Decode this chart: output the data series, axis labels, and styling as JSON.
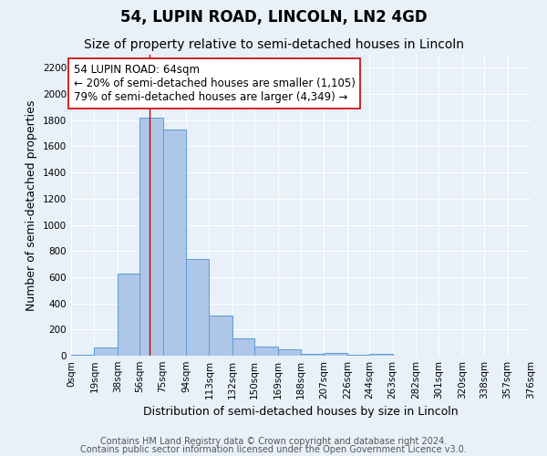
{
  "title": "54, LUPIN ROAD, LINCOLN, LN2 4GD",
  "subtitle": "Size of property relative to semi-detached houses in Lincoln",
  "xlabel": "Distribution of semi-detached houses by size in Lincoln",
  "ylabel": "Number of semi-detached properties",
  "bin_labels": [
    "0sqm",
    "19sqm",
    "38sqm",
    "56sqm",
    "75sqm",
    "94sqm",
    "113sqm",
    "132sqm",
    "150sqm",
    "169sqm",
    "188sqm",
    "207sqm",
    "226sqm",
    "244sqm",
    "263sqm",
    "282sqm",
    "301sqm",
    "320sqm",
    "338sqm",
    "357sqm",
    "376sqm"
  ],
  "bin_edges": [
    0,
    19,
    38,
    56,
    75,
    94,
    113,
    132,
    150,
    169,
    188,
    207,
    226,
    244,
    263,
    282,
    301,
    320,
    338,
    357,
    376
  ],
  "bar_heights": [
    10,
    60,
    625,
    1820,
    1730,
    740,
    305,
    135,
    70,
    47,
    15,
    18,
    10,
    15,
    0,
    0,
    0,
    0,
    0,
    0
  ],
  "bar_color": "#aec6e8",
  "bar_edgecolor": "#5b9bd5",
  "red_line_x": 64,
  "annotation_text": "54 LUPIN ROAD: 64sqm\n← 20% of semi-detached houses are smaller (1,105)\n79% of semi-detached houses are larger (4,349) →",
  "annotation_box_facecolor": "#ffffff",
  "annotation_box_edgecolor": "#cc0000",
  "ylim": [
    0,
    2300
  ],
  "yticks": [
    0,
    200,
    400,
    600,
    800,
    1000,
    1200,
    1400,
    1600,
    1800,
    2000,
    2200
  ],
  "bg_color": "#e8f0f8",
  "footer_line1": "Contains HM Land Registry data © Crown copyright and database right 2024.",
  "footer_line2": "Contains public sector information licensed under the Open Government Licence v3.0.",
  "title_fontsize": 12,
  "subtitle_fontsize": 10,
  "axis_label_fontsize": 9,
  "tick_fontsize": 7.5,
  "annotation_fontsize": 8.5,
  "footer_fontsize": 7
}
